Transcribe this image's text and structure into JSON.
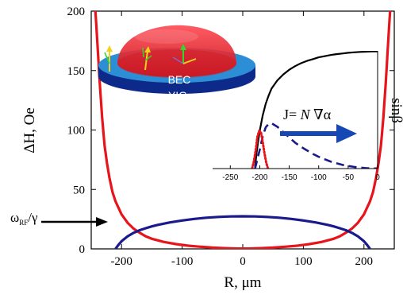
{
  "chart_data": [
    {
      "type": "line",
      "title": "",
      "xlabel": "R, μm",
      "ylabel": "ΔH, Oe",
      "xlim": [
        -250,
        250
      ],
      "ylim": [
        0,
        200
      ],
      "x_ticks": [
        "-200",
        "-100",
        "0",
        "100",
        "200"
      ],
      "y_ticks": [
        "0",
        "50",
        "100",
        "150",
        "200"
      ],
      "grid": false,
      "legend": "none",
      "series": [
        {
          "color": "#e8141b",
          "x": [
            -243,
            -240,
            -236,
            -232,
            -228,
            -224,
            -220,
            -215,
            -210,
            -200,
            -190,
            -180,
            -170,
            -160,
            -150,
            -130,
            -110,
            -90,
            -70,
            -50,
            -30,
            -10,
            0,
            10,
            30,
            50,
            70,
            90,
            110,
            130,
            150,
            160,
            170,
            180,
            190,
            200,
            210,
            215,
            220,
            224,
            228,
            232,
            236,
            240,
            243
          ],
          "values": [
            200,
            175,
            140,
            110,
            87,
            72,
            60,
            48,
            40,
            29,
            22,
            17,
            13.5,
            10.5,
            8.5,
            5.8,
            4,
            2.7,
            1.8,
            1.1,
            0.6,
            0.3,
            0.25,
            0.3,
            0.6,
            1.1,
            1.8,
            2.7,
            4,
            5.8,
            8.5,
            10.5,
            13.5,
            17,
            22,
            29,
            40,
            48,
            60,
            72,
            87,
            110,
            140,
            175,
            200
          ]
        },
        {
          "color": "#1a1a8c",
          "x": [
            -210,
            -205,
            -200,
            -190,
            -180,
            -170,
            -160,
            -150,
            -140,
            -120,
            -100,
            -80,
            -60,
            -40,
            -20,
            0,
            20,
            40,
            60,
            80,
            100,
            120,
            140,
            150,
            160,
            170,
            180,
            190,
            200,
            205,
            210
          ],
          "values": [
            0,
            3.5,
            6.4,
            10.5,
            13.5,
            15.7,
            17.4,
            18.9,
            20.2,
            22.3,
            23.9,
            25.2,
            26.2,
            26.9,
            27.3,
            27.4,
            27.3,
            26.9,
            26.2,
            25.2,
            23.9,
            22.3,
            20.2,
            18.9,
            17.4,
            15.7,
            13.5,
            10.5,
            6.4,
            3.5,
            0
          ]
        }
      ],
      "annotations": {
        "omega_label": "ω",
        "omega_sub": "RF",
        "omega_rest": "/γ",
        "omega_level": 26
      }
    },
    {
      "type": "line",
      "title": "",
      "xlabel": "",
      "ylabel": "sinβ",
      "xlim": [
        -280,
        0
      ],
      "ylim": [
        0,
        1
      ],
      "x_ticks": [
        "-250",
        "-200",
        "-150",
        "-100",
        "-50",
        "0"
      ],
      "grid": false,
      "legend": "none",
      "series": [
        {
          "style": "solid",
          "color": "#000000",
          "x": [
            -208,
            -205,
            -200,
            -195,
            -190,
            -185,
            -180,
            -170,
            -160,
            -150,
            -140,
            -130,
            -120,
            -110,
            -100,
            -90,
            -80,
            -70,
            -60,
            -50,
            -40,
            -30,
            -20,
            -10,
            0
          ],
          "values": [
            0.01,
            0.15,
            0.32,
            0.45,
            0.55,
            0.62,
            0.68,
            0.75,
            0.8,
            0.84,
            0.87,
            0.895,
            0.915,
            0.93,
            0.945,
            0.955,
            0.965,
            0.972,
            0.978,
            0.984,
            0.988,
            0.991,
            0.993,
            0.995,
            0.996
          ]
        },
        {
          "style": "dashed",
          "color": "#1a1a8c",
          "x": [
            -208,
            -200,
            -195,
            -190,
            -185,
            -180,
            -175,
            -170,
            -160,
            -150,
            -140,
            -130,
            -120,
            -110,
            -100,
            -90,
            -80,
            -70,
            -60,
            -50,
            -40,
            -30,
            -20,
            -10,
            0
          ],
          "values": [
            0,
            0.16,
            0.27,
            0.35,
            0.38,
            0.385,
            0.37,
            0.355,
            0.31,
            0.265,
            0.22,
            0.185,
            0.155,
            0.125,
            0.1,
            0.08,
            0.06,
            0.045,
            0.032,
            0.022,
            0.014,
            0.008,
            0.004,
            0.002,
            0.001
          ]
        },
        {
          "style": "dotted",
          "color": "#e8141b",
          "x": [
            -213,
            -210,
            -207,
            -204,
            -201,
            -198,
            -195,
            -192,
            -189,
            -186
          ],
          "values": [
            0,
            0.06,
            0.15,
            0.27,
            0.32,
            0.31,
            0.23,
            0.13,
            0.05,
            0
          ]
        }
      ],
      "annotations": {
        "flux_prefix": "J= ",
        "flux_N": "N",
        "flux_suffix": " ∇α"
      }
    }
  ],
  "illustration": {
    "condensate_label": "BEC",
    "film_label": "YIG"
  },
  "colors": {
    "red": "#e8141b",
    "navy": "#1a1a8c",
    "arrow_blue": "#1547b5",
    "film_blue": "#2c8fd6",
    "film_dark": "#0d2a8a",
    "spin_yellow": "#f2d21b",
    "spin_green": "#36d52e"
  }
}
